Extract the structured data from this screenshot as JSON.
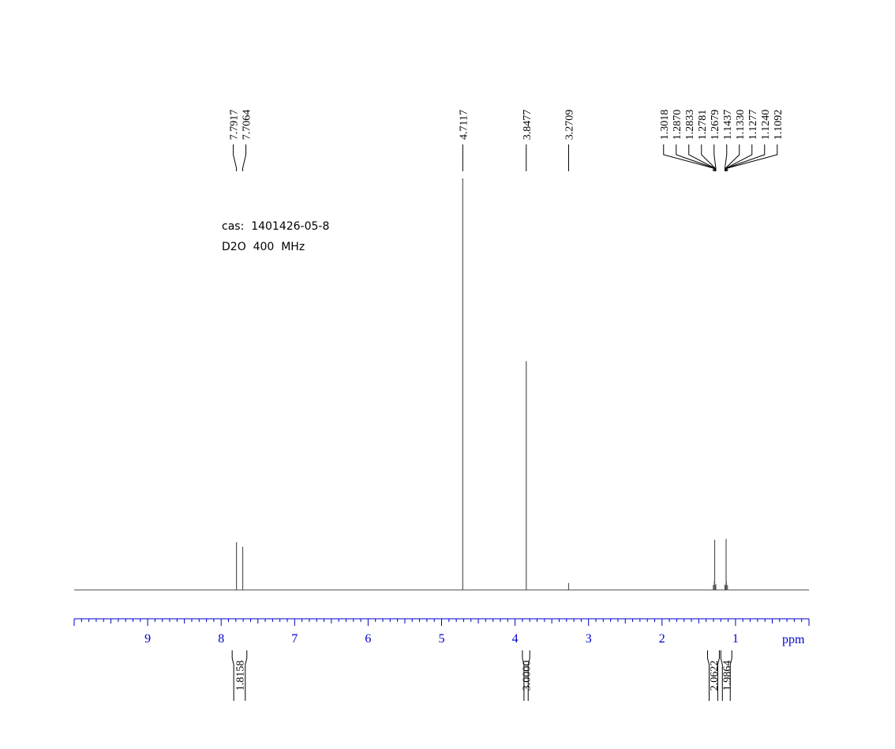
{
  "annotations": {
    "cas": "cas:  1401426-05-8",
    "solvent": "D2O  400  MHz"
  },
  "colors": {
    "spectrum": "#555555",
    "axis": "#0000cc",
    "labels": "#000000"
  },
  "chart_data": {
    "type": "line",
    "title": "",
    "xlabel": "ppm",
    "ylabel": "",
    "x_reversed": true,
    "xlim": [
      10.0,
      0.0
    ],
    "ticks": [
      {
        "value": 9,
        "label": "9"
      },
      {
        "value": 8,
        "label": "8"
      },
      {
        "value": 7,
        "label": "7"
      },
      {
        "value": 6,
        "label": "6"
      },
      {
        "value": 5,
        "label": "5"
      },
      {
        "value": 4,
        "label": "4"
      },
      {
        "value": 3,
        "label": "3"
      },
      {
        "value": 2,
        "label": "2"
      },
      {
        "value": 1,
        "label": "1"
      }
    ],
    "minor_tick_step": 0.1,
    "peaks": [
      {
        "ppm": 7.7917,
        "height": 0.116
      },
      {
        "ppm": 7.7064,
        "height": 0.105
      },
      {
        "ppm": 4.7117,
        "height": 1.0
      },
      {
        "ppm": 3.8477,
        "height": 0.556
      },
      {
        "ppm": 3.2709,
        "height": 0.017
      },
      {
        "ppm": 1.3018,
        "height": 0.012
      },
      {
        "ppm": 1.287,
        "height": 0.022
      },
      {
        "ppm": 1.2833,
        "height": 0.122
      },
      {
        "ppm": 1.2781,
        "height": 0.011
      },
      {
        "ppm": 1.2679,
        "height": 0.014
      },
      {
        "ppm": 1.1437,
        "height": 0.013
      },
      {
        "ppm": 1.133,
        "height": 0.01
      },
      {
        "ppm": 1.1277,
        "height": 0.124
      },
      {
        "ppm": 1.124,
        "height": 0.02
      },
      {
        "ppm": 1.1092,
        "height": 0.012
      }
    ],
    "peak_labels": [
      {
        "group": "aromatic",
        "anchor_ppm": 7.7917,
        "labels": [
          "7.7917",
          "7.7064"
        ],
        "positions": [
          7.7917,
          7.7064
        ]
      },
      {
        "group": "hdo",
        "anchor_ppm": 4.7117,
        "labels": [
          "4.7117"
        ],
        "positions": [
          4.7117
        ]
      },
      {
        "group": "methoxy",
        "anchor_ppm": 3.8477,
        "labels": [
          "3.8477"
        ],
        "positions": [
          3.8477
        ]
      },
      {
        "group": "minor",
        "anchor_ppm": 3.2709,
        "labels": [
          "3.2709"
        ],
        "positions": [
          3.2709
        ]
      },
      {
        "group": "aliphatic",
        "anchor_ppm": 1.2,
        "labels": [
          "1.3018",
          "1.2870",
          "1.2833",
          "1.2781",
          "1.2679",
          "1.1437",
          "1.1330",
          "1.1277",
          "1.1240",
          "1.1092"
        ],
        "positions": [
          1.3018,
          1.287,
          1.2833,
          1.2781,
          1.2679,
          1.1437,
          1.133,
          1.1277,
          1.124,
          1.1092
        ]
      }
    ],
    "integrals": [
      {
        "from": 7.85,
        "to": 7.65,
        "label": "1.8158"
      },
      {
        "from": 3.9,
        "to": 3.8,
        "label": "3.0000"
      },
      {
        "from": 1.38,
        "to": 1.22,
        "label": "2.0622"
      },
      {
        "from": 1.2,
        "to": 1.05,
        "label": "1.9864"
      }
    ]
  }
}
